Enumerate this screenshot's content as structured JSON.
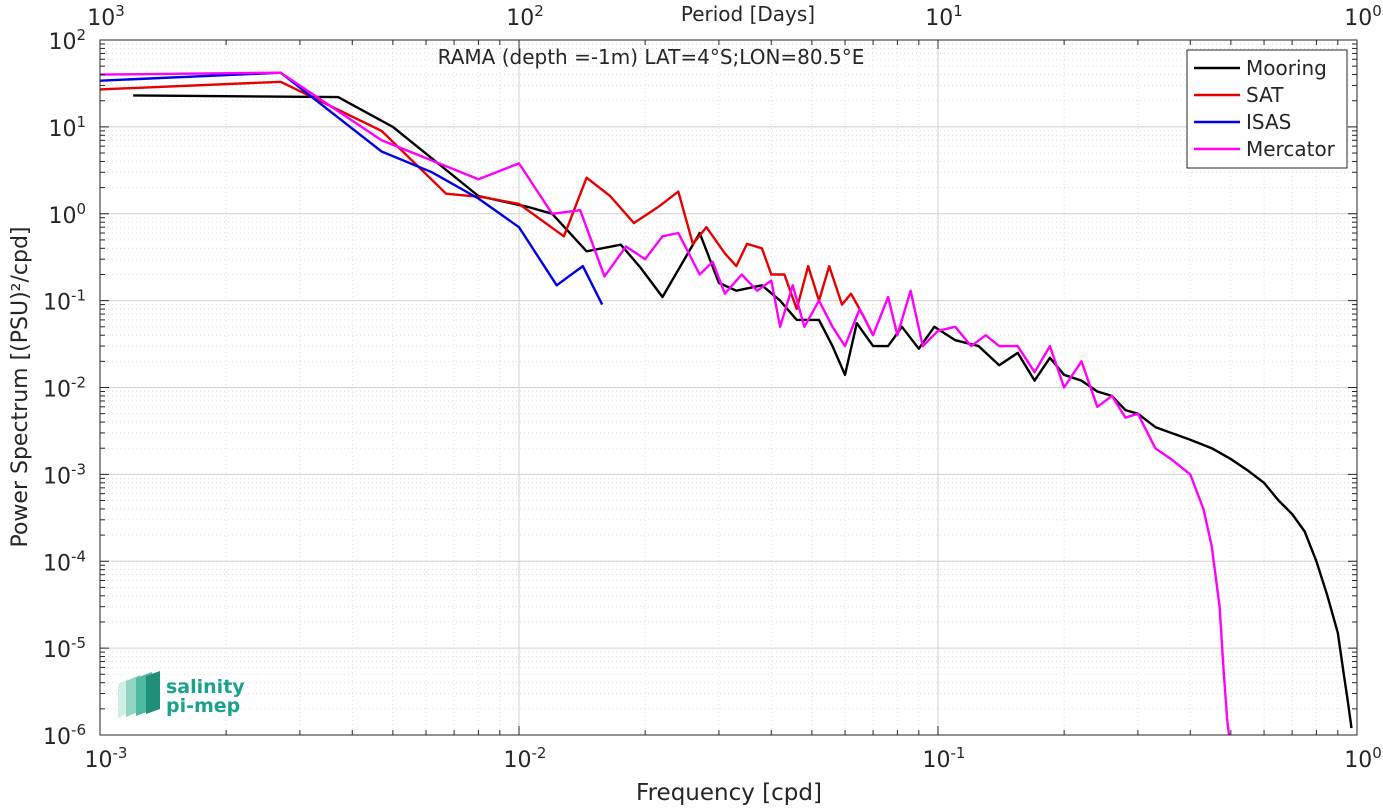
{
  "chart_data": {
    "type": "line",
    "title": "RAMA (depth =-1m) LAT=4°S;LON=80.5°E",
    "xlabel": "Frequency [cpd]",
    "ylabel": "Power Spectrum [(PSU)²/cpd]",
    "top_xlabel": "Period [Days]",
    "x_scale": "log",
    "y_scale": "log",
    "xlim": [
      0.001,
      1
    ],
    "ylim": [
      1e-06,
      100
    ],
    "grid": true,
    "legend_position": "top-right",
    "x_ticks": [
      0.001,
      0.01,
      0.1,
      1
    ],
    "x_tick_labels": [
      {
        "base": "10",
        "exp": "-3"
      },
      {
        "base": "10",
        "exp": "-2"
      },
      {
        "base": "10",
        "exp": "-1"
      },
      {
        "base": "10",
        "exp": "0"
      }
    ],
    "y_ticks": [
      100,
      10,
      1,
      0.1,
      0.01,
      0.001,
      0.0001,
      1e-05,
      1e-06
    ],
    "y_tick_labels": [
      {
        "base": "10",
        "exp": "2"
      },
      {
        "base": "10",
        "exp": "1"
      },
      {
        "base": "10",
        "exp": "0"
      },
      {
        "base": "10",
        "exp": "-1"
      },
      {
        "base": "10",
        "exp": "-2"
      },
      {
        "base": "10",
        "exp": "-3"
      },
      {
        "base": "10",
        "exp": "-4"
      },
      {
        "base": "10",
        "exp": "-5"
      },
      {
        "base": "10",
        "exp": "-6"
      }
    ],
    "top_ticks": [
      1000,
      100,
      10,
      1
    ],
    "top_tick_labels": [
      {
        "base": "10",
        "exp": "3"
      },
      {
        "base": "10",
        "exp": "2"
      },
      {
        "base": "10",
        "exp": "1"
      },
      {
        "base": "10",
        "exp": "0"
      }
    ],
    "series": [
      {
        "name": "Mooring",
        "color": "#000000",
        "points": [
          [
            0.0012,
            23
          ],
          [
            0.0037,
            22
          ],
          [
            0.005,
            10
          ],
          [
            0.008,
            1.6
          ],
          [
            0.0105,
            1.2
          ],
          [
            0.012,
            1.0
          ],
          [
            0.0145,
            0.37
          ],
          [
            0.0175,
            0.44
          ],
          [
            0.0195,
            0.24
          ],
          [
            0.022,
            0.11
          ],
          [
            0.027,
            0.6
          ],
          [
            0.03,
            0.16
          ],
          [
            0.033,
            0.13
          ],
          [
            0.038,
            0.15
          ],
          [
            0.042,
            0.1
          ],
          [
            0.046,
            0.06
          ],
          [
            0.052,
            0.06
          ],
          [
            0.056,
            0.03
          ],
          [
            0.06,
            0.014
          ],
          [
            0.064,
            0.055
          ],
          [
            0.07,
            0.03
          ],
          [
            0.076,
            0.03
          ],
          [
            0.082,
            0.05
          ],
          [
            0.09,
            0.028
          ],
          [
            0.098,
            0.05
          ],
          [
            0.11,
            0.035
          ],
          [
            0.125,
            0.03
          ],
          [
            0.14,
            0.018
          ],
          [
            0.155,
            0.025
          ],
          [
            0.17,
            0.012
          ],
          [
            0.185,
            0.022
          ],
          [
            0.2,
            0.014
          ],
          [
            0.22,
            0.012
          ],
          [
            0.24,
            0.009
          ],
          [
            0.26,
            0.008
          ],
          [
            0.28,
            0.0055
          ],
          [
            0.3,
            0.005
          ],
          [
            0.33,
            0.0035
          ],
          [
            0.36,
            0.003
          ],
          [
            0.4,
            0.0025
          ],
          [
            0.45,
            0.002
          ],
          [
            0.5,
            0.0015
          ],
          [
            0.55,
            0.0011
          ],
          [
            0.6,
            0.0008
          ],
          [
            0.65,
            0.0005
          ],
          [
            0.7,
            0.00035
          ],
          [
            0.75,
            0.00022
          ],
          [
            0.8,
            0.0001
          ],
          [
            0.85,
            4e-05
          ],
          [
            0.9,
            1.5e-05
          ],
          [
            0.93,
            5e-06
          ],
          [
            0.95,
            2.5e-06
          ],
          [
            0.97,
            1.2e-06
          ]
        ]
      },
      {
        "name": "SAT",
        "color": "#e60000",
        "points": [
          [
            0.001,
            27
          ],
          [
            0.0027,
            33
          ],
          [
            0.0047,
            9
          ],
          [
            0.0067,
            1.7
          ],
          [
            0.0082,
            1.55
          ],
          [
            0.01,
            1.3
          ],
          [
            0.0128,
            0.55
          ],
          [
            0.0145,
            2.6
          ],
          [
            0.0165,
            1.6
          ],
          [
            0.0188,
            0.78
          ],
          [
            0.0215,
            1.2
          ],
          [
            0.024,
            1.8
          ],
          [
            0.026,
            0.45
          ],
          [
            0.028,
            0.7
          ],
          [
            0.031,
            0.35
          ],
          [
            0.033,
            0.25
          ],
          [
            0.035,
            0.45
          ],
          [
            0.038,
            0.4
          ],
          [
            0.04,
            0.2
          ],
          [
            0.043,
            0.2
          ],
          [
            0.046,
            0.08
          ],
          [
            0.049,
            0.25
          ],
          [
            0.052,
            0.1
          ],
          [
            0.055,
            0.25
          ],
          [
            0.059,
            0.09
          ],
          [
            0.062,
            0.12
          ],
          [
            0.066,
            0.07
          ],
          [
            0.07,
            0.04
          ]
        ]
      },
      {
        "name": "ISAS",
        "color": "#0000e6",
        "points": [
          [
            0.001,
            34
          ],
          [
            0.0027,
            42
          ],
          [
            0.0047,
            5.2
          ],
          [
            0.0062,
            3.0
          ],
          [
            0.008,
            1.5
          ],
          [
            0.01,
            0.7
          ],
          [
            0.0123,
            0.15
          ],
          [
            0.0142,
            0.25
          ],
          [
            0.0158,
            0.09
          ]
        ]
      },
      {
        "name": "Mercator",
        "color": "#ff00ff",
        "points": [
          [
            0.001,
            40
          ],
          [
            0.0027,
            42
          ],
          [
            0.0047,
            7
          ],
          [
            0.008,
            2.5
          ],
          [
            0.01,
            3.8
          ],
          [
            0.012,
            1.0
          ],
          [
            0.014,
            1.1
          ],
          [
            0.016,
            0.19
          ],
          [
            0.018,
            0.42
          ],
          [
            0.02,
            0.3
          ],
          [
            0.022,
            0.55
          ],
          [
            0.024,
            0.6
          ],
          [
            0.027,
            0.2
          ],
          [
            0.029,
            0.28
          ],
          [
            0.031,
            0.12
          ],
          [
            0.034,
            0.2
          ],
          [
            0.037,
            0.13
          ],
          [
            0.04,
            0.17
          ],
          [
            0.042,
            0.05
          ],
          [
            0.045,
            0.15
          ],
          [
            0.048,
            0.05
          ],
          [
            0.052,
            0.1
          ],
          [
            0.056,
            0.05
          ],
          [
            0.06,
            0.03
          ],
          [
            0.065,
            0.08
          ],
          [
            0.07,
            0.04
          ],
          [
            0.076,
            0.11
          ],
          [
            0.08,
            0.04
          ],
          [
            0.086,
            0.13
          ],
          [
            0.092,
            0.03
          ],
          [
            0.1,
            0.045
          ],
          [
            0.11,
            0.05
          ],
          [
            0.12,
            0.03
          ],
          [
            0.13,
            0.04
          ],
          [
            0.14,
            0.03
          ],
          [
            0.155,
            0.03
          ],
          [
            0.17,
            0.015
          ],
          [
            0.185,
            0.03
          ],
          [
            0.2,
            0.01
          ],
          [
            0.22,
            0.02
          ],
          [
            0.24,
            0.006
          ],
          [
            0.26,
            0.008
          ],
          [
            0.28,
            0.0045
          ],
          [
            0.3,
            0.005
          ],
          [
            0.33,
            0.002
          ],
          [
            0.36,
            0.0015
          ],
          [
            0.4,
            0.001
          ],
          [
            0.43,
            0.0004
          ],
          [
            0.45,
            0.00015
          ],
          [
            0.47,
            3e-05
          ],
          [
            0.48,
            6e-06
          ],
          [
            0.49,
            1.5e-06
          ],
          [
            0.495,
            1e-06
          ]
        ]
      }
    ]
  },
  "logo": {
    "line1": "salinity",
    "line2": "pi-mep",
    "color": "#1aa38c"
  }
}
